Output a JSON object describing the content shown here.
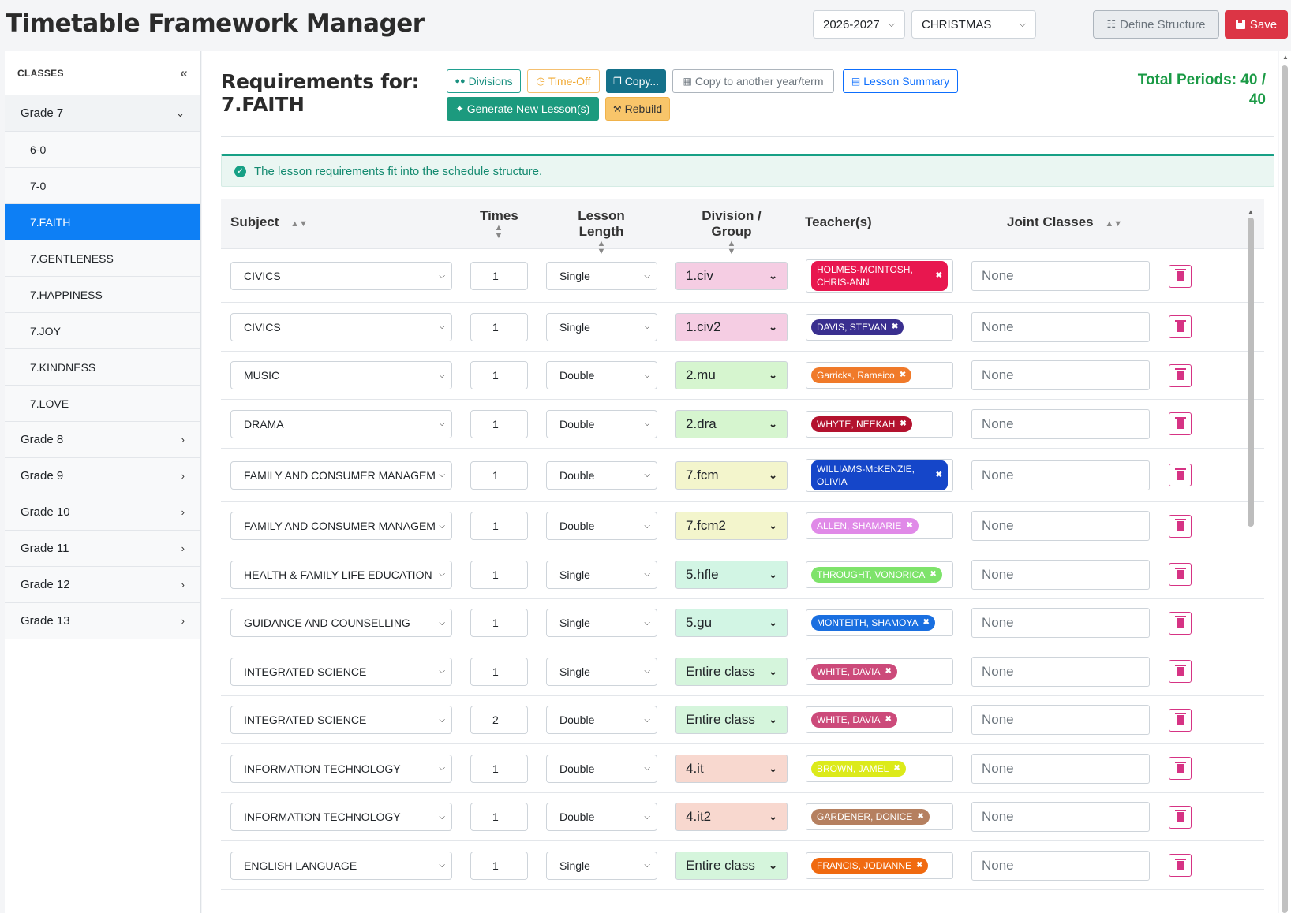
{
  "header": {
    "title": "Timetable Framework Manager",
    "year": "2026-2027",
    "term": "CHRISTMAS",
    "define_label": "Define Structure",
    "save_label": "Save"
  },
  "sidebar": {
    "title": "CLASSES",
    "groups": [
      {
        "label": "Grade 7",
        "open": true,
        "items": [
          "6-0",
          "7-0",
          "7.FAITH",
          "7.GENTLENESS",
          "7.HAPPINESS",
          "7.JOY",
          "7.KINDNESS",
          "7.LOVE"
        ]
      },
      {
        "label": "Grade 8"
      },
      {
        "label": "Grade 9"
      },
      {
        "label": "Grade 10"
      },
      {
        "label": "Grade 11"
      },
      {
        "label": "Grade 12"
      },
      {
        "label": "Grade 13"
      }
    ],
    "active_item": "7.FAITH"
  },
  "main": {
    "title_line1": "Requirements for:",
    "title_line2": "7.FAITH",
    "buttons": {
      "divisions": "Divisions",
      "timeoff": "Time-Off",
      "copy": "Copy...",
      "copy_other": "Copy to another year/term",
      "summary": "Lesson Summary",
      "generate": "Generate New Lesson(s)",
      "rebuild": "Rebuild"
    },
    "total_line1": "Total Periods: 40 /",
    "total_line2": "40",
    "alert": "The lesson requirements fit into the schedule structure."
  },
  "table": {
    "headers": {
      "subject": "Subject",
      "times": "Times",
      "length": "Lesson Length",
      "division": "Division / Group",
      "teachers": "Teacher(s)",
      "joint": "Joint Classes"
    },
    "rows": [
      {
        "subject": "CIVICS",
        "times": "1",
        "length": "Single",
        "group": "1.civ",
        "group_color": "#f5cde3",
        "teacher": "HOLMES-MCINTOSH, CHRIS-ANN",
        "teacher_color": "#e8174f",
        "wide": true,
        "joint": "None"
      },
      {
        "subject": "CIVICS",
        "times": "1",
        "length": "Single",
        "group": "1.civ2",
        "group_color": "#f5cde3",
        "teacher": "DAVIS, STEVAN",
        "teacher_color": "#3a2f8f",
        "joint": "None"
      },
      {
        "subject": "MUSIC",
        "times": "1",
        "length": "Double",
        "group": "2.mu",
        "group_color": "#d6f5cf",
        "teacher": "Garricks, Rameico",
        "teacher_color": "#f07a2a",
        "joint": "None"
      },
      {
        "subject": "DRAMA",
        "times": "1",
        "length": "Double",
        "group": "2.dra",
        "group_color": "#d6f5cf",
        "teacher": "WHYTE, NEEKAH",
        "teacher_color": "#b3122e",
        "joint": "None"
      },
      {
        "subject": "FAMILY AND CONSUMER MANAGEMENT",
        "times": "1",
        "length": "Double",
        "group": "7.fcm",
        "group_color": "#f3f5cc",
        "teacher": "WILLIAMS-McKENZIE, OLIVIA",
        "teacher_color": "#1546c9",
        "wide": true,
        "joint": "None"
      },
      {
        "subject": "FAMILY AND CONSUMER MANAGEMENT",
        "times": "1",
        "length": "Double",
        "group": "7.fcm2",
        "group_color": "#f3f5cc",
        "teacher": "ALLEN, SHAMARIE",
        "teacher_color": "#e08ae8",
        "joint": "None"
      },
      {
        "subject": "HEALTH & FAMILY LIFE EDUCATION",
        "times": "1",
        "length": "Single",
        "group": "5.hfle",
        "group_color": "#d2f5e4",
        "teacher": "THROUGHT, VONORICA",
        "teacher_color": "#7ee36b",
        "joint": "None"
      },
      {
        "subject": "GUIDANCE AND COUNSELLING",
        "times": "1",
        "length": "Single",
        "group": "5.gu",
        "group_color": "#d2f5e4",
        "teacher": "MONTEITH, SHAMOYA",
        "teacher_color": "#1a6fe0",
        "joint": "None"
      },
      {
        "subject": "INTEGRATED SCIENCE",
        "times": "1",
        "length": "Single",
        "group": "Entire class",
        "group_color": "#d5f5dc",
        "teacher": "WHITE, DAVIA",
        "teacher_color": "#cc4a7a",
        "joint": "None"
      },
      {
        "subject": "INTEGRATED SCIENCE",
        "times": "2",
        "length": "Double",
        "group": "Entire class",
        "group_color": "#d5f5dc",
        "teacher": "WHITE, DAVIA",
        "teacher_color": "#cc4a7a",
        "joint": "None"
      },
      {
        "subject": "INFORMATION TECHNOLOGY",
        "times": "1",
        "length": "Double",
        "group": "4.it",
        "group_color": "#f8d8cf",
        "teacher": "BROWN, JAMEL",
        "teacher_color": "#dcea1a",
        "joint": "None"
      },
      {
        "subject": "INFORMATION TECHNOLOGY",
        "times": "1",
        "length": "Double",
        "group": "4.it2",
        "group_color": "#f8d8cf",
        "teacher": "GARDENER, DONICE",
        "teacher_color": "#b58060",
        "joint": "None"
      },
      {
        "subject": "ENGLISH LANGUAGE",
        "times": "1",
        "length": "Single",
        "group": "Entire class",
        "group_color": "#d5f5dc",
        "teacher": "FRANCIS, JODIANNE",
        "teacher_color": "#f06a10",
        "joint": "None"
      }
    ]
  }
}
